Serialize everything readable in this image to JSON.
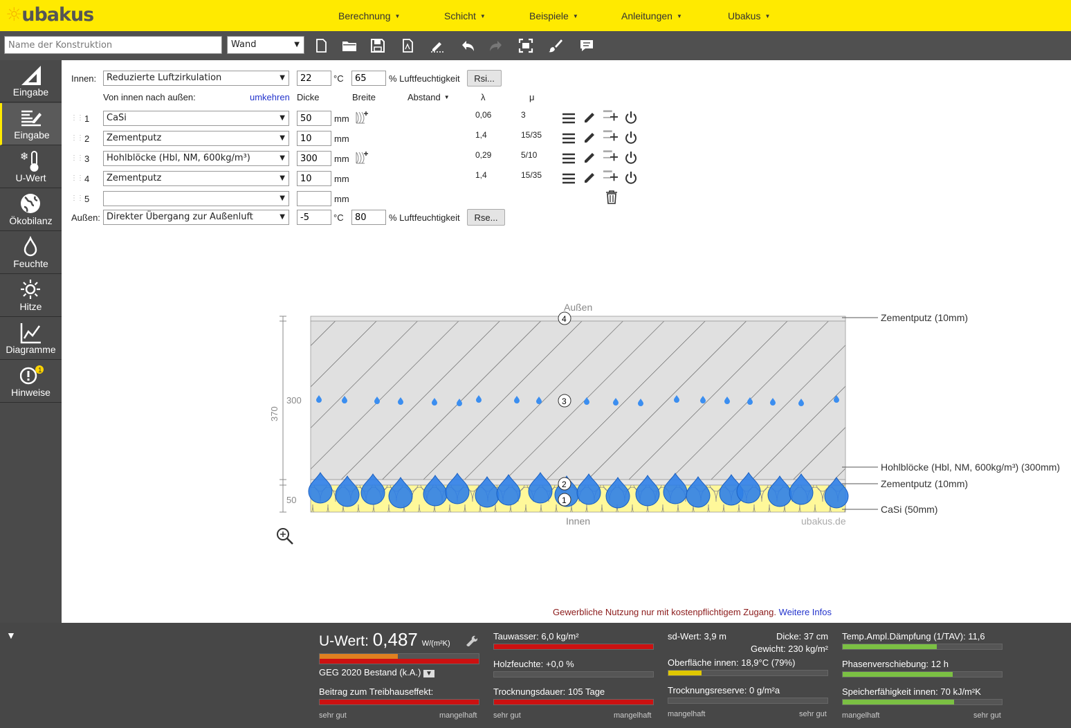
{
  "header": {
    "logo": "ubakus",
    "nav": [
      "Berechnung",
      "Schicht",
      "Beispiele",
      "Anleitungen",
      "Ubakus"
    ]
  },
  "toolbar": {
    "name_placeholder": "Name der Konstruktion",
    "type_value": "Wand",
    "icons": [
      "new-file-icon",
      "open-folder-icon",
      "save-icon",
      "pdf-icon",
      "edit-icon",
      "undo-icon",
      "redo-icon",
      "fit-screen-icon",
      "paint-brush-icon",
      "comment-icon"
    ]
  },
  "sidebar": [
    {
      "label": "Eingabe",
      "icon": "ruler-triangle-icon"
    },
    {
      "label": "Eingabe",
      "icon": "layers-edit-icon",
      "active": true
    },
    {
      "label": "U-Wert",
      "icon": "thermometer-icon"
    },
    {
      "label": "Ökobilanz",
      "icon": "globe-icon"
    },
    {
      "label": "Feuchte",
      "icon": "drop-icon"
    },
    {
      "label": "Hitze",
      "icon": "sun-icon"
    },
    {
      "label": "Diagramme",
      "icon": "chart-icon"
    },
    {
      "label": "Hinweise",
      "icon": "warning-icon",
      "badge": "1"
    }
  ],
  "form": {
    "innen_label": "Innen:",
    "innen_select": "Reduzierte Luftzirkulation",
    "innen_temp": "22",
    "innen_hum": "65",
    "deg": "°C",
    "hum_label": "% Luftfeuchtigkeit",
    "rsi": "Rsi...",
    "order_label": "Von innen nach außen:",
    "reverse": "umkehren",
    "col_dicke": "Dicke",
    "col_breite": "Breite",
    "col_abstand": "Abstand",
    "col_lambda": "λ",
    "col_mu": "μ",
    "mm": "mm",
    "aussen_label": "Außen:",
    "aussen_select": "Direkter Übergang zur Außenluft",
    "aussen_temp": "-5",
    "aussen_hum": "80",
    "rse": "Rse...",
    "layers": [
      {
        "n": "1",
        "material": "CaSi",
        "dicke": "50",
        "lambda": "0,06",
        "mu": "3"
      },
      {
        "n": "2",
        "material": "Zementputz",
        "dicke": "10",
        "lambda": "1,4",
        "mu": "15/35"
      },
      {
        "n": "3",
        "material": "Hohlblöcke (Hbl, NM,  600kg/m³)",
        "dicke": "300",
        "lambda": "0,29",
        "mu": "5/10"
      },
      {
        "n": "4",
        "material": "Zementputz",
        "dicke": "10",
        "lambda": "1,4",
        "mu": "15/35"
      },
      {
        "n": "5",
        "material": "",
        "dicke": "",
        "lambda": "",
        "mu": ""
      }
    ]
  },
  "drawing": {
    "top_label": "Außen",
    "bottom_label": "Innen",
    "watermark": "ubakus.de",
    "dim_total": "370",
    "dim_300": "300",
    "dim_50": "50",
    "markers": [
      "4",
      "3",
      "2",
      "1"
    ],
    "callouts": [
      "Zementputz (10mm)",
      "Hohlblöcke (Hbl, NM,  600kg/m³) (300mm)",
      "Zementputz (10mm)",
      "CaSi (50mm)"
    ]
  },
  "notice": {
    "text": "Gewerbliche Nutzung nur mit kostenpflichtigem Zugang.",
    "link": "Weitere Infos"
  },
  "results": {
    "uwert_label": "U-Wert:",
    "uwert_value": "0,487",
    "uwert_unit": "W/(m²K)",
    "uwert_fill": 0.49,
    "geg": "GEG 2020 Bestand (k.A.)",
    "treibhaus": "Beitrag zum Treibhauseffekt:",
    "tauwasser": "Tauwasser: 6,0 kg/m²",
    "holzfeuchte": "Holzfeuchte: +0,0 %",
    "trocknungsdauer": "Trocknungsdauer: 105 Tage",
    "sd": "sd-Wert: 3,9 m",
    "dicke": "Dicke: 37 cm",
    "gewicht": "Gewicht: 230 kg/m²",
    "oberflaeche": "Oberfläche innen: 18,9°C (79%)",
    "oberflaeche_fill": 0.21,
    "trocknungsreserve": "Trocknungsreserve: 0 g/m²a",
    "temp": "Temp.Ampl.Dämpfung (1/TAV): 11,6",
    "temp_fill": 0.59,
    "phase": "Phasenverschiebung: 12 h",
    "phase_fill": 0.69,
    "speicher": "Speicherfähigkeit innen: 70 kJ/m²K",
    "speicher_fill": 0.7,
    "sehr_gut": "sehr gut",
    "mangelhaft": "mangelhaft"
  }
}
